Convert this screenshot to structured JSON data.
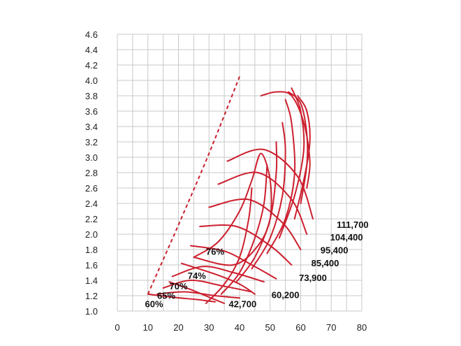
{
  "chart_data": {
    "type": "line",
    "title": "",
    "xlabel": "",
    "ylabel": "",
    "xlim": [
      0,
      80
    ],
    "ylim": [
      1.0,
      4.6
    ],
    "x_ticks": [
      "0",
      "10",
      "20",
      "30",
      "40",
      "50",
      "60",
      "70",
      "80"
    ],
    "y_ticks": [
      "1.0",
      "1.2",
      "1.4",
      "1.6",
      "1.8",
      "2.0",
      "2.2",
      "2.4",
      "2.6",
      "2.8",
      "3.0",
      "3.2",
      "3.4",
      "3.6",
      "3.8",
      "4.0",
      "4.2",
      "4.4",
      "4.6"
    ],
    "grid": true,
    "line_color": "#cc1f2e",
    "surge_line": [
      [
        10,
        1.22
      ],
      [
        20,
        2.12
      ],
      [
        30,
        3.05
      ],
      [
        40,
        4.05
      ]
    ],
    "efficiency_islands": [
      {
        "label": "60%",
        "points": [
          [
            10,
            1.22
          ],
          [
            18,
            1.18
          ],
          [
            26,
            1.15
          ],
          [
            32,
            1.12
          ]
        ],
        "label_at": [
          12,
          1.05
        ]
      },
      {
        "label": "65%",
        "points": [
          [
            13,
            1.22
          ],
          [
            22,
            1.25
          ],
          [
            32,
            1.2
          ],
          [
            40,
            1.17
          ]
        ],
        "label_at": [
          16,
          1.16
        ]
      },
      {
        "label": "70%",
        "points": [
          [
            15,
            1.3
          ],
          [
            24,
            1.4
          ],
          [
            34,
            1.33
          ],
          [
            44,
            1.25
          ]
        ],
        "label_at": [
          20,
          1.28
        ]
      },
      {
        "label": "74%",
        "points": [
          [
            18,
            1.45
          ],
          [
            28,
            1.58
          ],
          [
            38,
            1.5
          ],
          [
            48,
            1.38
          ]
        ],
        "label_at": [
          26,
          1.42
        ]
      },
      {
        "label": "76%",
        "points": [
          [
            25,
            1.7
          ],
          [
            33,
            1.9
          ],
          [
            40,
            2.3
          ],
          [
            44,
            2.7
          ],
          [
            47,
            3.05
          ],
          [
            50,
            2.7
          ],
          [
            50,
            2.2
          ],
          [
            46,
            1.85
          ],
          [
            38,
            1.6
          ],
          [
            25,
            1.7
          ]
        ],
        "label_at": [
          32,
          1.73
        ]
      }
    ],
    "speed_lines": [
      {
        "label": "42,700",
        "points": [
          [
            17,
            1.38
          ],
          [
            24,
            1.28
          ],
          [
            30,
            1.18
          ],
          [
            35,
            1.1
          ]
        ],
        "label_at": [
          41,
          1.05
        ]
      },
      {
        "label": "60,200",
        "points": [
          [
            21,
            1.62
          ],
          [
            32,
            1.48
          ],
          [
            40,
            1.35
          ],
          [
            45,
            1.22
          ]
        ],
        "label_at": [
          55,
          1.17
        ]
      },
      {
        "label": "73,900",
        "points": [
          [
            24,
            1.85
          ],
          [
            35,
            1.78
          ],
          [
            44,
            1.6
          ],
          [
            52,
            1.42
          ]
        ],
        "label_at": [
          64,
          1.39
        ]
      },
      {
        "label": "85,400",
        "points": [
          [
            27,
            2.1
          ],
          [
            39,
            2.1
          ],
          [
            50,
            1.85
          ],
          [
            57,
            1.6
          ]
        ],
        "label_at": [
          68,
          1.58
        ]
      },
      {
        "label": "95,400",
        "points": [
          [
            30,
            2.35
          ],
          [
            43,
            2.45
          ],
          [
            54,
            2.15
          ],
          [
            60,
            1.8
          ]
        ],
        "label_at": [
          71,
          1.75
        ]
      },
      {
        "label": "104,400",
        "points": [
          [
            33,
            2.65
          ],
          [
            46,
            2.8
          ],
          [
            57,
            2.45
          ],
          [
            62,
            2.0
          ]
        ],
        "label_at": [
          75,
          1.92
        ]
      },
      {
        "label": "111,700",
        "points": [
          [
            36,
            2.95
          ],
          [
            48,
            3.1
          ],
          [
            59,
            2.75
          ],
          [
            64,
            2.2
          ]
        ],
        "label_at": [
          77,
          2.08
        ]
      }
    ],
    "choke_curves": [
      [
        [
          29,
          1.1
        ],
        [
          35,
          1.35
        ],
        [
          40,
          1.7
        ],
        [
          43,
          2.2
        ],
        [
          44,
          2.6
        ]
      ],
      [
        [
          34,
          1.22
        ],
        [
          40,
          1.5
        ],
        [
          45,
          1.95
        ],
        [
          48,
          2.4
        ],
        [
          49,
          2.9
        ]
      ],
      [
        [
          39,
          1.38
        ],
        [
          45,
          1.7
        ],
        [
          50,
          2.2
        ],
        [
          52,
          2.8
        ],
        [
          52,
          3.2
        ]
      ],
      [
        [
          44,
          1.55
        ],
        [
          50,
          1.95
        ],
        [
          54,
          2.5
        ],
        [
          55,
          3.1
        ],
        [
          54,
          3.45
        ]
      ],
      [
        [
          49,
          1.75
        ],
        [
          55,
          2.2
        ],
        [
          58,
          2.8
        ],
        [
          57,
          3.45
        ],
        [
          55,
          3.75
        ]
      ],
      [
        [
          53,
          1.95
        ],
        [
          58,
          2.5
        ],
        [
          61,
          3.1
        ],
        [
          60,
          3.6
        ],
        [
          57,
          3.9
        ]
      ],
      [
        [
          58,
          2.2
        ],
        [
          61,
          2.7
        ],
        [
          63,
          3.2
        ],
        [
          62,
          3.6
        ],
        [
          59,
          3.8
        ]
      ],
      [
        [
          60,
          2.4
        ],
        [
          62,
          2.9
        ],
        [
          62,
          3.3
        ],
        [
          60,
          3.7
        ],
        [
          56,
          3.85
        ]
      ],
      [
        [
          62,
          2.6
        ],
        [
          63,
          2.95
        ],
        [
          61,
          3.45
        ],
        [
          57,
          3.8
        ],
        [
          52,
          3.85
        ],
        [
          47,
          3.8
        ]
      ]
    ]
  }
}
